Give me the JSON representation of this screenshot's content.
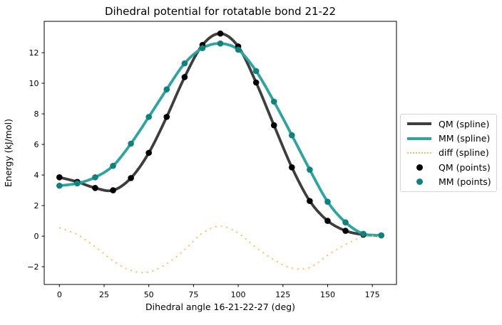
{
  "chart_data": {
    "type": "line",
    "title": "Dihedral potential for rotatable bond 21-22",
    "xlabel": "Dihedral angle 16-21-22-27 (deg)",
    "ylabel": "Energy (kJ/mol)",
    "x": [
      0,
      10,
      20,
      30,
      40,
      50,
      60,
      70,
      80,
      90,
      100,
      110,
      120,
      130,
      140,
      150,
      160,
      170,
      180
    ],
    "series": [
      {
        "name": "QM (spline)",
        "type": "spline",
        "color": "#3e3e3e",
        "linewidth": 3.8,
        "values": [
          3.85,
          3.55,
          3.15,
          3.0,
          3.8,
          5.45,
          7.8,
          10.4,
          12.5,
          13.25,
          12.4,
          10.05,
          7.25,
          4.5,
          2.3,
          1.0,
          0.35,
          0.1,
          0.05
        ]
      },
      {
        "name": "MM (spline)",
        "type": "spline",
        "color": "#2ca5a0",
        "linewidth": 3.8,
        "values": [
          3.3,
          3.45,
          3.85,
          4.6,
          6.05,
          7.8,
          9.6,
          11.3,
          12.3,
          12.6,
          12.2,
          10.8,
          8.8,
          6.6,
          4.35,
          2.25,
          0.9,
          0.15,
          0.05
        ]
      },
      {
        "name": "diff (spline)",
        "type": "spline-dotted",
        "color": "#ffbe55",
        "linewidth": 2,
        "values": [
          0.55,
          0.1,
          -0.7,
          -1.6,
          -2.25,
          -2.35,
          -1.8,
          -0.9,
          0.2,
          0.65,
          0.2,
          -0.75,
          -1.55,
          -2.1,
          -2.05,
          -1.25,
          -0.55,
          -0.05,
          0.0
        ]
      },
      {
        "name": "QM (points)",
        "type": "points",
        "color": "#000000",
        "markersize": 8.6,
        "values": [
          3.85,
          3.55,
          3.15,
          3.0,
          3.8,
          5.45,
          7.8,
          10.4,
          12.5,
          13.25,
          12.4,
          10.05,
          7.25,
          4.5,
          2.3,
          1.0,
          0.35,
          0.1,
          0.05
        ]
      },
      {
        "name": "MM (points)",
        "type": "points",
        "color": "#0e827d",
        "markersize": 8.6,
        "values": [
          3.3,
          3.45,
          3.85,
          4.6,
          6.05,
          7.8,
          9.6,
          11.3,
          12.3,
          12.6,
          12.2,
          10.8,
          8.8,
          6.6,
          4.35,
          2.25,
          0.9,
          0.15,
          0.05
        ]
      }
    ],
    "xticks": [
      0,
      25,
      50,
      75,
      100,
      125,
      150,
      175
    ],
    "yticks": [
      -2,
      0,
      2,
      4,
      6,
      8,
      10,
      12
    ],
    "xlim": [
      -8.5,
      188.5
    ],
    "ylim": [
      -3.16,
      14.05
    ],
    "grid": false,
    "legend_position": "center-right-outside"
  }
}
